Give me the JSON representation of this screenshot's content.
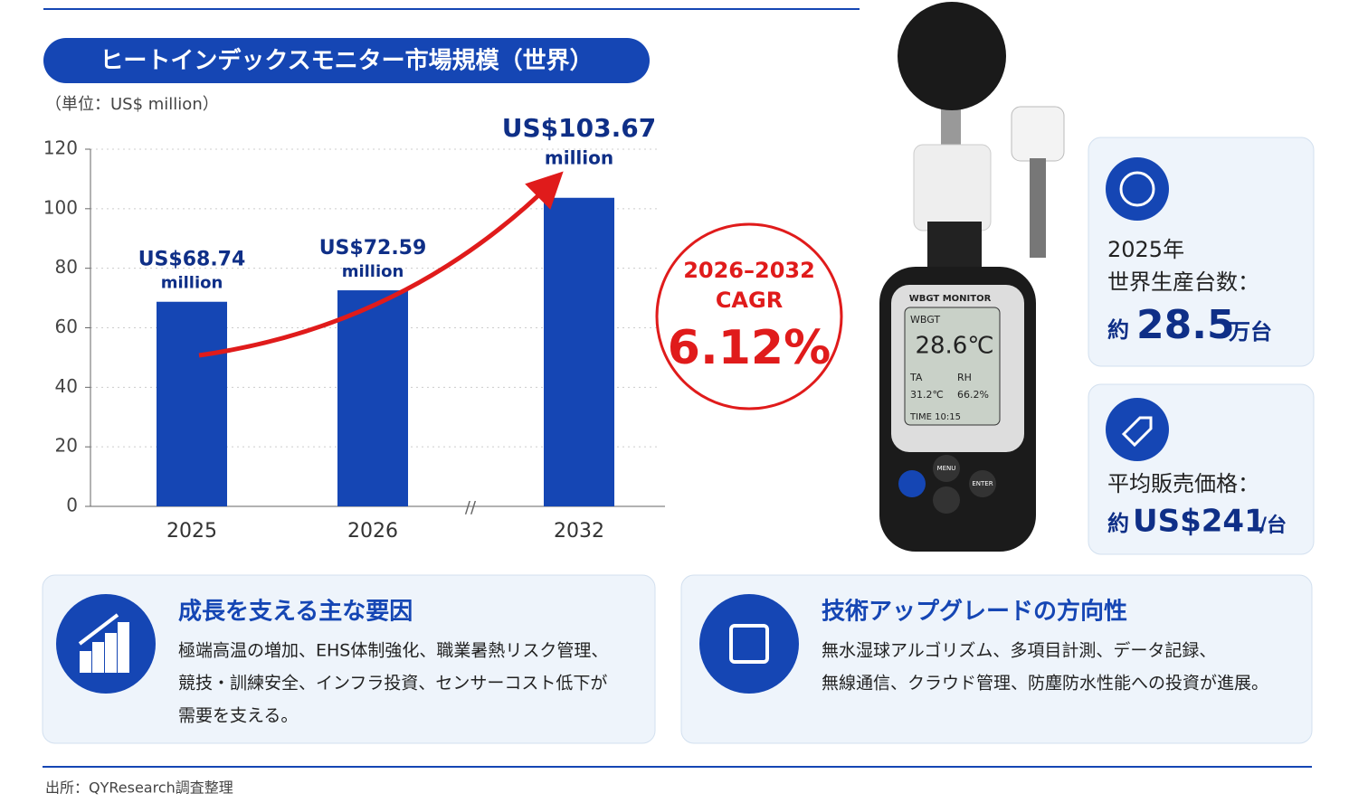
{
  "title": "ヒートインデックスモニター市場規模（世界）",
  "chart_data": {
    "type": "bar",
    "unit_label": "（単位：US$ million）",
    "categories": [
      "2025",
      "2026",
      "2032"
    ],
    "values": [
      68.74,
      72.59,
      103.67
    ],
    "value_labels": [
      "US$68.74",
      "US$72.59",
      "US$103.67"
    ],
    "value_unit": "million",
    "color": "#1546b4",
    "ylim": [
      0,
      120
    ],
    "yticks": [
      0,
      20,
      40,
      60,
      80,
      100,
      120
    ],
    "grid": true
  },
  "cagr": {
    "period": "2026–2032",
    "label": "CAGR",
    "value": "6.12%"
  },
  "device": {
    "brand": "WBGT MONITOR",
    "mode": "WBGT",
    "reading": "28.6℃",
    "ta_label": "TA",
    "rh_label": "RH",
    "ta": "31.2℃",
    "rh": "66.2%",
    "time": "TIME 10:15",
    "menu": "MENU",
    "enter": "ENTER"
  },
  "stats": [
    {
      "lines": [
        "2025年",
        "世界生産台数："
      ],
      "prefix": "約",
      "value": "28.5",
      "suffix": "万台"
    },
    {
      "lines": [
        "平均販売価格："
      ],
      "prefix": "約",
      "value": "US$241",
      "suffix": "/台"
    }
  ],
  "panels": [
    {
      "title": "成長を支える主な要因",
      "lines": [
        "極端高温の増加、EHS体制強化、職業暑熱リスク管理、",
        "競技・訓練安全、インフラ投資、センサーコスト低下が",
        "需要を支える。"
      ]
    },
    {
      "title": "技術アップグレードの方向性",
      "lines": [
        "無水湿球アルゴリズム、多項目計測、データ記録、",
        "無線通信、クラウド管理、防塵防水性能への投資が進展。"
      ]
    }
  ],
  "source": "出所：QYResearch調査整理"
}
